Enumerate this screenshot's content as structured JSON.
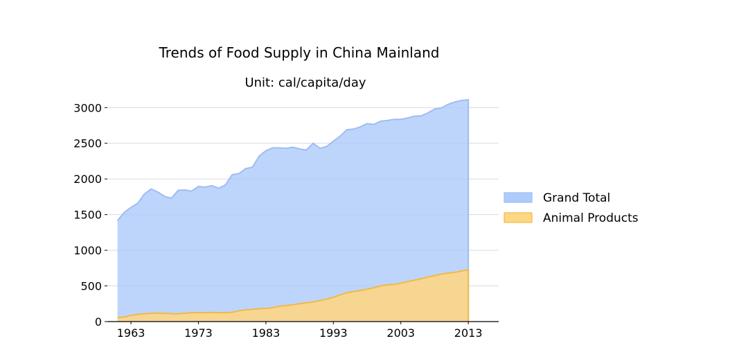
{
  "chart_data": {
    "type": "area",
    "title": "Trends of Food Supply in China Mainland",
    "subtitle": "Unit: cal/capita/day",
    "xlabel": "",
    "ylabel": "",
    "xlim": [
      1959.5,
      2017.5
    ],
    "ylim": [
      0,
      3100
    ],
    "xticks": [
      1963,
      1973,
      1983,
      1993,
      2003,
      2013
    ],
    "yticks": [
      0,
      500,
      1000,
      1500,
      2000,
      2500,
      3000
    ],
    "grid": true,
    "legend_position": "right",
    "x": [
      1961,
      1962,
      1963,
      1964,
      1965,
      1966,
      1967,
      1968,
      1969,
      1970,
      1971,
      1972,
      1973,
      1974,
      1975,
      1976,
      1977,
      1978,
      1979,
      1980,
      1981,
      1982,
      1983,
      1984,
      1985,
      1986,
      1987,
      1988,
      1989,
      1990,
      1991,
      1992,
      1993,
      1994,
      1995,
      1996,
      1997,
      1998,
      1999,
      2000,
      2001,
      2002,
      2003,
      2004,
      2005,
      2006,
      2007,
      2008,
      2009,
      2010,
      2011,
      2012,
      2013
    ],
    "series": [
      {
        "name": "Grand Total",
        "color": "#aecbfa",
        "line_color": "#9ebcf4",
        "values": [
          1415,
          1530,
          1600,
          1660,
          1790,
          1860,
          1815,
          1755,
          1730,
          1840,
          1845,
          1830,
          1895,
          1885,
          1905,
          1870,
          1915,
          2060,
          2075,
          2145,
          2165,
          2320,
          2395,
          2435,
          2435,
          2430,
          2445,
          2420,
          2405,
          2500,
          2430,
          2455,
          2530,
          2600,
          2690,
          2700,
          2730,
          2775,
          2765,
          2810,
          2820,
          2835,
          2835,
          2855,
          2880,
          2885,
          2925,
          2980,
          2995,
          3045,
          3080,
          3100,
          3110
        ]
      },
      {
        "name": "Animal Products",
        "color": "#fdd686",
        "line_color": "#f2b944",
        "values": [
          55,
          65,
          85,
          100,
          110,
          115,
          118,
          115,
          110,
          108,
          118,
          125,
          125,
          125,
          128,
          125,
          125,
          130,
          150,
          165,
          170,
          180,
          185,
          195,
          215,
          225,
          235,
          250,
          265,
          275,
          295,
          315,
          340,
          375,
          405,
          420,
          435,
          455,
          475,
          500,
          515,
          520,
          540,
          560,
          580,
          600,
          625,
          645,
          665,
          680,
          690,
          710,
          725
        ]
      }
    ]
  }
}
